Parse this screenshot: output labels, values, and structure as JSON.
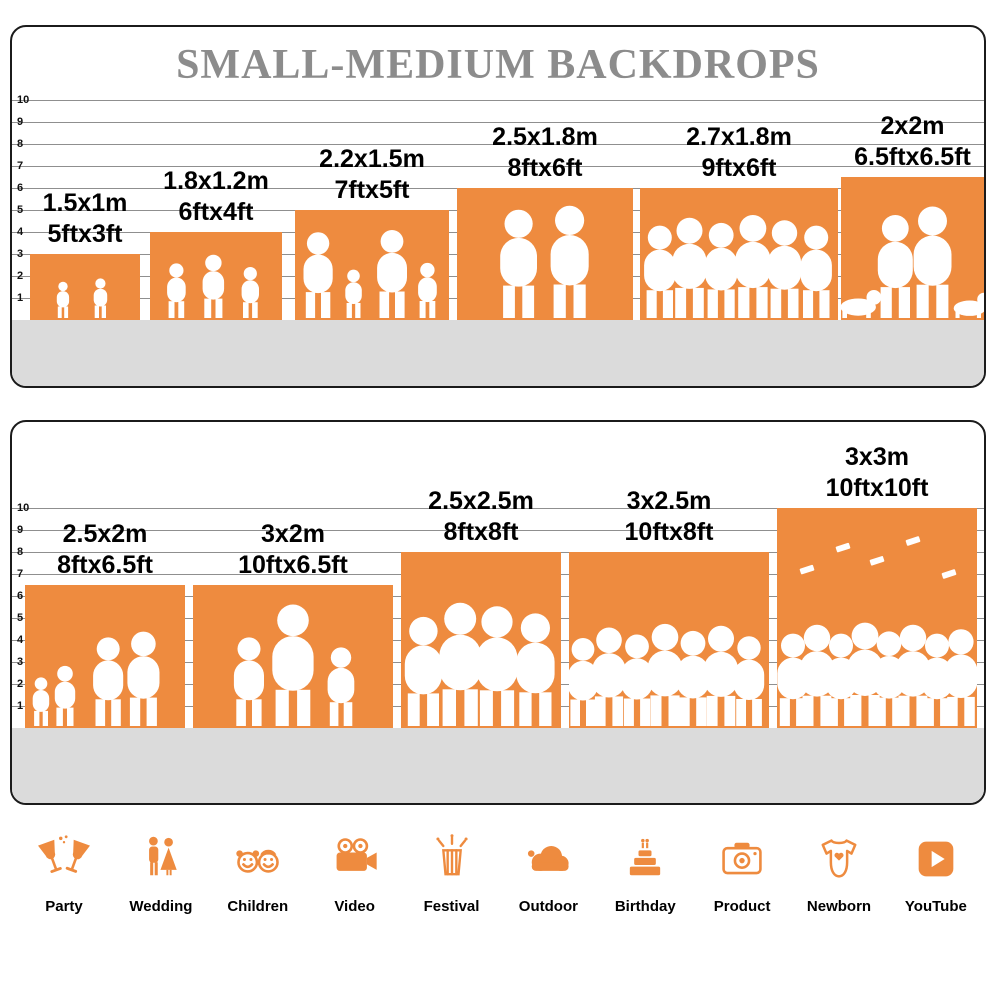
{
  "title": "SMALL-MEDIUM BACKDROPS",
  "colors": {
    "bar_orange": "#EE8B3F",
    "floor_gray": "#DBDBDB",
    "title_gray": "#8C8C8C"
  },
  "panel1": {
    "scale": [
      "10",
      "9",
      "8",
      "7",
      "6",
      "5",
      "4",
      "3",
      "2",
      "1"
    ],
    "bars": [
      {
        "metric": "1.5x1m",
        "imperial": "5ftx3ft",
        "w_ft": 5,
        "h_ft": 3,
        "silhouette": "children-reading"
      },
      {
        "metric": "1.8x1.2m",
        "imperial": "6ftx4ft",
        "w_ft": 6,
        "h_ft": 4,
        "silhouette": "children-running"
      },
      {
        "metric": "2.2x1.5m",
        "imperial": "7ftx5ft",
        "w_ft": 7,
        "h_ft": 5,
        "silhouette": "family-holding-hands"
      },
      {
        "metric": "2.5x1.8m",
        "imperial": "8ftx6ft",
        "w_ft": 8,
        "h_ft": 6,
        "silhouette": "wedding-couple"
      },
      {
        "metric": "2.7x1.8m",
        "imperial": "9ftx6ft",
        "w_ft": 9,
        "h_ft": 6,
        "silhouette": "dancing-group"
      },
      {
        "metric": "2x2m",
        "imperial": "6.5ftx6.5ft",
        "w_ft": 6.5,
        "h_ft": 6.5,
        "silhouette": "family-with-pets"
      }
    ]
  },
  "panel2": {
    "scale": [
      "10",
      "9",
      "8",
      "7",
      "6",
      "5",
      "4",
      "3",
      "2",
      "1"
    ],
    "bars": [
      {
        "metric": "2.5x2m",
        "imperial": "8ftx6.5ft",
        "w_ft": 8,
        "h_ft": 6.5,
        "silhouette": "family-children"
      },
      {
        "metric": "3x2m",
        "imperial": "10ftx6.5ft",
        "w_ft": 10,
        "h_ft": 6.5,
        "silhouette": "family-playing"
      },
      {
        "metric": "2.5x2.5m",
        "imperial": "8ftx8ft",
        "w_ft": 8,
        "h_ft": 8,
        "silhouette": "standing-group"
      },
      {
        "metric": "3x2.5m",
        "imperial": "10ftx8ft",
        "w_ft": 10,
        "h_ft": 8,
        "silhouette": "crowd-group"
      },
      {
        "metric": "3x3m",
        "imperial": "10ftx10ft",
        "w_ft": 10,
        "h_ft": 10,
        "silhouette": "graduation-crowd"
      }
    ]
  },
  "categories": [
    {
      "label": "Party",
      "icon": "party-icon"
    },
    {
      "label": "Wedding",
      "icon": "wedding-icon"
    },
    {
      "label": "Children",
      "icon": "children-icon"
    },
    {
      "label": "Video",
      "icon": "video-icon"
    },
    {
      "label": "Festival",
      "icon": "festival-icon"
    },
    {
      "label": "Outdoor",
      "icon": "outdoor-icon"
    },
    {
      "label": "Birthday",
      "icon": "birthday-icon"
    },
    {
      "label": "Product",
      "icon": "product-icon"
    },
    {
      "label": "Newborn",
      "icon": "newborn-icon"
    },
    {
      "label": "YouTube",
      "icon": "youtube-icon"
    }
  ]
}
